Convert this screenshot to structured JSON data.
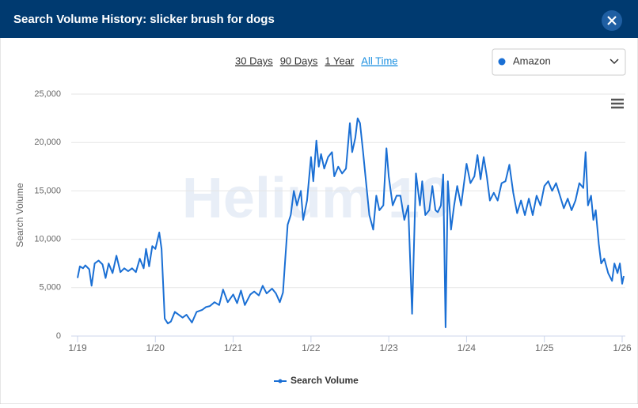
{
  "header": {
    "title": "Search Volume History: slicker brush for dogs"
  },
  "range_buttons": [
    "30 Days",
    "90 Days",
    "1 Year",
    "All Time"
  ],
  "dropdown": {
    "selected": "Amazon"
  },
  "watermark": "Helium 10",
  "chart_data": {
    "type": "line",
    "y_label": "Search Volume",
    "x": [
      2019.0,
      2019.03,
      2019.07,
      2019.1,
      2019.15,
      2019.18,
      2019.22,
      2019.27,
      2019.32,
      2019.36,
      2019.4,
      2019.45,
      2019.5,
      2019.55,
      2019.6,
      2019.65,
      2019.7,
      2019.75,
      2019.8,
      2019.85,
      2019.88,
      2019.92,
      2019.96,
      2020.0,
      2020.05,
      2020.08,
      2020.12,
      2020.16,
      2020.2,
      2020.25,
      2020.3,
      2020.35,
      2020.4,
      2020.47,
      2020.53,
      2020.6,
      2020.65,
      2020.7,
      2020.76,
      2020.82,
      2020.87,
      2020.93,
      2021.0,
      2021.05,
      2021.1,
      2021.15,
      2021.22,
      2021.27,
      2021.33,
      2021.38,
      2021.43,
      2021.5,
      2021.55,
      2021.6,
      2021.64,
      2021.67,
      2021.7,
      2021.74,
      2021.78,
      2021.82,
      2021.87,
      2021.9,
      2021.95,
      2022.0,
      2022.03,
      2022.07,
      2022.1,
      2022.13,
      2022.17,
      2022.22,
      2022.27,
      2022.3,
      2022.35,
      2022.4,
      2022.45,
      2022.5,
      2022.53,
      2022.57,
      2022.6,
      2022.63,
      2022.67,
      2022.7,
      2022.75,
      2022.8,
      2022.84,
      2022.88,
      2022.93,
      2022.97,
      2023.0,
      2023.05,
      2023.1,
      2023.15,
      2023.2,
      2023.25,
      2023.3,
      2023.35,
      2023.4,
      2023.43,
      2023.47,
      2023.52,
      2023.56,
      2023.6,
      2023.63,
      2023.67,
      2023.7,
      2023.73,
      2023.76,
      2023.8,
      2023.84,
      2023.88,
      2023.93,
      2024.0,
      2024.05,
      2024.1,
      2024.14,
      2024.18,
      2024.22,
      2024.26,
      2024.3,
      2024.35,
      2024.4,
      2024.45,
      2024.5,
      2024.55,
      2024.6,
      2024.65,
      2024.7,
      2024.75,
      2024.8,
      2024.85,
      2024.9,
      2024.95,
      2025.0,
      2025.05,
      2025.1,
      2025.15,
      2025.2,
      2025.25,
      2025.3,
      2025.35,
      2025.4,
      2025.45,
      2025.5,
      2025.53,
      2025.56,
      2025.6,
      2025.63,
      2025.66,
      2025.7,
      2025.73,
      2025.77,
      2025.82,
      2025.87,
      2025.9,
      2025.94,
      2025.97,
      2026.0,
      2026.02
    ],
    "series": [
      {
        "name": "Search Volume",
        "color": "#1a6fd4",
        "values": [
          6000,
          7200,
          7000,
          7300,
          6900,
          5200,
          7500,
          7800,
          7400,
          6000,
          7500,
          6500,
          8300,
          6600,
          7000,
          6700,
          7000,
          6600,
          8000,
          7000,
          9000,
          7200,
          9300,
          9000,
          10700,
          9000,
          1800,
          1300,
          1500,
          2500,
          2200,
          1900,
          2200,
          1400,
          2500,
          2700,
          3000,
          3100,
          3500,
          3200,
          4800,
          3500,
          4300,
          3400,
          4700,
          3200,
          4300,
          4600,
          4200,
          5200,
          4400,
          4900,
          4400,
          3500,
          4500,
          8000,
          11500,
          12500,
          15000,
          13500,
          15000,
          12000,
          14000,
          18500,
          16000,
          20200,
          17500,
          18800,
          17300,
          18500,
          19000,
          16500,
          17500,
          16800,
          17300,
          22000,
          19000,
          20500,
          22500,
          22000,
          19000,
          16500,
          12500,
          11000,
          14500,
          13000,
          13500,
          19400,
          16500,
          13500,
          14500,
          14500,
          12000,
          13500,
          2300,
          16800,
          13500,
          16000,
          12500,
          13000,
          15500,
          13000,
          12800,
          13500,
          16700,
          900,
          16000,
          11000,
          13500,
          15500,
          13500,
          17800,
          15800,
          16500,
          18700,
          16200,
          18500,
          16500,
          14000,
          14800,
          14000,
          15800,
          16000,
          17700,
          14800,
          12700,
          14000,
          12500,
          14200,
          12500,
          14500,
          13500,
          15500,
          16000,
          15000,
          15800,
          14500,
          13200,
          14200,
          13000,
          14000,
          15800,
          15300,
          19000,
          13500,
          14500,
          12000,
          13000,
          9500,
          7500,
          8000,
          6500,
          5700,
          7500,
          6500,
          7500,
          5400,
          6200
        ]
      }
    ],
    "xlim": [
      2019,
      2026
    ],
    "xticks": [
      {
        "value": 2019,
        "label": "1/19"
      },
      {
        "value": 2020,
        "label": "1/20"
      },
      {
        "value": 2021,
        "label": "1/21"
      },
      {
        "value": 2022,
        "label": "1/22"
      },
      {
        "value": 2023,
        "label": "1/23"
      },
      {
        "value": 2024,
        "label": "1/24"
      },
      {
        "value": 2025,
        "label": "1/25"
      },
      {
        "value": 2026,
        "label": "1/26"
      }
    ],
    "ylim": [
      0,
      25000
    ],
    "yticks": [
      0,
      {
        "value": 5000,
        "label": "5,000"
      },
      {
        "value": 10000,
        "label": "10,000"
      },
      {
        "value": 15000,
        "label": "15,000"
      },
      {
        "value": 20000,
        "label": "20,000"
      },
      {
        "value": 25000,
        "label": "25,000"
      }
    ],
    "grid": true
  }
}
